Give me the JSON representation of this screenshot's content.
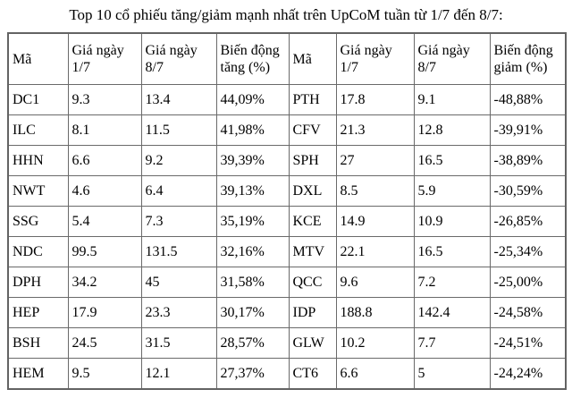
{
  "title": "Top 10 cổ phiếu tăng/giảm mạnh nhất trên UpCoM tuần từ 1/7 đến 8/7:",
  "table": {
    "headers": [
      "Mã",
      "Giá ngày 1/7",
      "Giá ngày 8/7",
      "Biến động tăng (%)",
      "Mã",
      "Giá ngày 1/7",
      "Giá ngày 8/7",
      "Biến động giảm (%)"
    ],
    "rows": [
      [
        "DC1",
        "9.3",
        "13.4",
        "44,09%",
        "PTH",
        "17.8",
        "9.1",
        "-48,88%"
      ],
      [
        "ILC",
        "8.1",
        "11.5",
        "41,98%",
        "CFV",
        "21.3",
        "12.8",
        "-39,91%"
      ],
      [
        "HHN",
        "6.6",
        "9.2",
        "39,39%",
        "SPH",
        "27",
        "16.5",
        "-38,89%"
      ],
      [
        "NWT",
        "4.6",
        "6.4",
        "39,13%",
        "DXL",
        "8.5",
        "5.9",
        "-30,59%"
      ],
      [
        "SSG",
        "5.4",
        "7.3",
        "35,19%",
        "KCE",
        "14.9",
        "10.9",
        "-26,85%"
      ],
      [
        "NDC",
        "99.5",
        "131.5",
        "32,16%",
        "MTV",
        "22.1",
        "16.5",
        "-25,34%"
      ],
      [
        "DPH",
        "34.2",
        "45",
        "31,58%",
        "QCC",
        "9.6",
        "7.2",
        "-25,00%"
      ],
      [
        "HEP",
        "17.9",
        "23.3",
        "30,17%",
        "IDP",
        "188.8",
        "142.4",
        "-24,58%"
      ],
      [
        "BSH",
        "24.5",
        "31.5",
        "28,57%",
        "GLW",
        "10.2",
        "7.7",
        "-24,51%"
      ],
      [
        "HEM",
        "9.5",
        "12.1",
        "27,37%",
        "CT6",
        "6.6",
        "5",
        "-24,24%"
      ]
    ]
  },
  "chart_data": {
    "type": "table",
    "title": "Top 10 cổ phiếu tăng/giảm mạnh nhất trên UpCoM tuần từ 1/7 đến 8/7",
    "gainers": {
      "columns": [
        "Mã",
        "Giá ngày 1/7",
        "Giá ngày 8/7",
        "Biến động tăng (%)"
      ],
      "rows": [
        [
          "DC1",
          9.3,
          13.4,
          "44,09%"
        ],
        [
          "ILC",
          8.1,
          11.5,
          "41,98%"
        ],
        [
          "HHN",
          6.6,
          9.2,
          "39,39%"
        ],
        [
          "NWT",
          4.6,
          6.4,
          "39,13%"
        ],
        [
          "SSG",
          5.4,
          7.3,
          "35,19%"
        ],
        [
          "NDC",
          99.5,
          131.5,
          "32,16%"
        ],
        [
          "DPH",
          34.2,
          45,
          "31,58%"
        ],
        [
          "HEP",
          17.9,
          23.3,
          "30,17%"
        ],
        [
          "BSH",
          24.5,
          31.5,
          "28,57%"
        ],
        [
          "HEM",
          9.5,
          12.1,
          "27,37%"
        ]
      ]
    },
    "losers": {
      "columns": [
        "Mã",
        "Giá ngày 1/7",
        "Giá ngày 8/7",
        "Biến động giảm (%)"
      ],
      "rows": [
        [
          "PTH",
          17.8,
          9.1,
          "-48,88%"
        ],
        [
          "CFV",
          21.3,
          12.8,
          "-39,91%"
        ],
        [
          "SPH",
          27,
          16.5,
          "-38,89%"
        ],
        [
          "DXL",
          8.5,
          5.9,
          "-30,59%"
        ],
        [
          "KCE",
          14.9,
          10.9,
          "-26,85%"
        ],
        [
          "MTV",
          22.1,
          16.5,
          "-25,34%"
        ],
        [
          "QCC",
          9.6,
          7.2,
          "-25,00%"
        ],
        [
          "IDP",
          188.8,
          142.4,
          "-24,58%"
        ],
        [
          "GLW",
          10.2,
          7.7,
          "-24,51%"
        ],
        [
          "CT6",
          6.6,
          5,
          "-24,24%"
        ]
      ]
    }
  }
}
